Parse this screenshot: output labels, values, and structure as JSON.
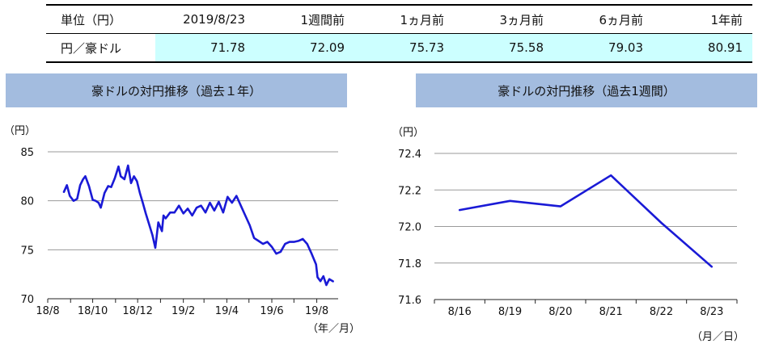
{
  "summary_table": {
    "header": {
      "label": "単位（円）",
      "columns": [
        "2019/8/23",
        "1週間前",
        "1ヵ月前",
        "3ヵ月前",
        "6ヵ月前",
        "1年前"
      ]
    },
    "row": {
      "label": "円／豪ドル",
      "values": [
        "71.78",
        "72.09",
        "75.73",
        "75.58",
        "79.03",
        "80.91"
      ]
    }
  },
  "chart_data": [
    {
      "type": "line",
      "title": "豪ドルの対円推移（過去１年）",
      "ylabel": "（円）",
      "xlabel": "（年／月）",
      "ylim": [
        70,
        85
      ],
      "yticks": [
        "85",
        "80",
        "75",
        "70"
      ],
      "xticks": [
        "18/8",
        "18/10",
        "18/12",
        "19/2",
        "19/4",
        "19/6",
        "19/8"
      ],
      "grid": true,
      "color": "#1a1ad6",
      "series": [
        {
          "x": [
            "2018-08-23",
            "2018-08-27",
            "2018-08-31",
            "2018-09-05",
            "2018-09-10",
            "2018-09-14",
            "2018-09-18",
            "2018-09-21",
            "2018-09-26",
            "2018-10-01",
            "2018-10-05",
            "2018-10-09",
            "2018-10-12",
            "2018-10-17",
            "2018-10-22",
            "2018-10-26",
            "2018-10-31",
            "2018-11-05",
            "2018-11-08",
            "2018-11-13",
            "2018-11-18",
            "2018-11-22",
            "2018-11-26",
            "2018-11-30",
            "2018-12-04",
            "2018-12-08",
            "2018-12-12",
            "2018-12-17",
            "2018-12-21",
            "2018-12-25",
            "2018-12-29",
            "2019-01-03",
            "2019-01-05",
            "2019-01-08",
            "2019-01-14",
            "2019-01-20",
            "2019-01-26",
            "2019-02-01",
            "2019-02-07",
            "2019-02-13",
            "2019-02-19",
            "2019-02-25",
            "2019-03-03",
            "2019-03-09",
            "2019-03-15",
            "2019-03-21",
            "2019-03-27",
            "2019-04-02",
            "2019-04-08",
            "2019-04-14",
            "2019-04-20",
            "2019-04-26",
            "2019-05-02",
            "2019-05-08",
            "2019-05-14",
            "2019-05-20",
            "2019-05-26",
            "2019-06-01",
            "2019-06-07",
            "2019-06-13",
            "2019-06-19",
            "2019-06-25",
            "2019-07-01",
            "2019-07-07",
            "2019-07-13",
            "2019-07-19",
            "2019-07-25",
            "2019-07-31",
            "2019-08-02",
            "2019-08-06",
            "2019-08-10",
            "2019-08-14",
            "2019-08-18",
            "2019-08-23"
          ],
          "y": [
            80.9,
            81.6,
            80.5,
            80.0,
            80.2,
            81.6,
            82.2,
            82.5,
            81.5,
            80.1,
            80.0,
            79.8,
            79.3,
            80.8,
            81.5,
            81.4,
            82.3,
            83.5,
            82.5,
            82.2,
            83.6,
            81.8,
            82.5,
            82.0,
            80.8,
            79.8,
            78.7,
            77.5,
            76.5,
            75.2,
            77.8,
            76.9,
            78.5,
            78.2,
            78.8,
            78.8,
            79.5,
            78.7,
            79.2,
            78.5,
            79.3,
            79.5,
            78.8,
            79.8,
            79.0,
            79.9,
            78.8,
            80.4,
            79.8,
            80.5,
            79.5,
            78.5,
            77.5,
            76.2,
            75.9,
            75.6,
            75.8,
            75.3,
            74.6,
            74.8,
            75.6,
            75.8,
            75.8,
            75.9,
            76.1,
            75.6,
            74.6,
            73.5,
            72.2,
            71.8,
            72.3,
            71.4,
            72.0,
            71.78
          ]
        }
      ]
    },
    {
      "type": "line",
      "title": "豪ドルの対円推移（過去1週間）",
      "ylabel": "（円）",
      "xlabel": "（月／日）",
      "ylim": [
        71.6,
        72.4
      ],
      "yticks": [
        "72.4",
        "72.2",
        "72.0",
        "71.8",
        "71.6"
      ],
      "categories": [
        "8/16",
        "8/19",
        "8/20",
        "8/21",
        "8/22",
        "8/23"
      ],
      "grid": true,
      "color": "#1a1ad6",
      "series": [
        {
          "values": [
            72.09,
            72.14,
            72.11,
            72.28,
            72.02,
            71.78
          ]
        }
      ]
    }
  ]
}
